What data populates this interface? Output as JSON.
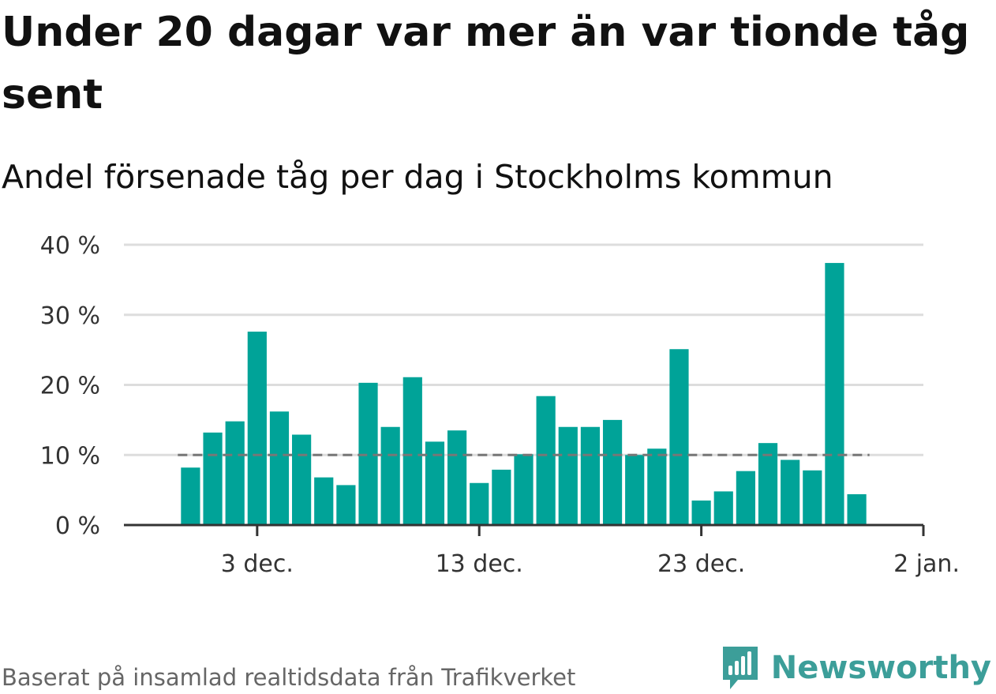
{
  "header": {
    "title": "Under 20 dagar var mer än var tionde tåg sent",
    "subtitle": "Andel försenade tåg per dag i Stockholms kommun"
  },
  "footer": {
    "source": "Baserat på insamlad realtidsdata från Trafikverket",
    "brand": "Newsworthy"
  },
  "colors": {
    "bar": "#00a398",
    "reference_line": "#777777",
    "grid": "#dddddd",
    "axis": "#333333",
    "brand": "#3c9e99"
  },
  "icons": {
    "logo": "newsworthy-logo-icon"
  },
  "chart_data": {
    "type": "bar",
    "title": "",
    "xlabel": "",
    "ylabel": "",
    "x": [
      "2023-11-30",
      "2023-12-01",
      "2023-12-02",
      "2023-12-03",
      "2023-12-04",
      "2023-12-05",
      "2023-12-06",
      "2023-12-07",
      "2023-12-08",
      "2023-12-09",
      "2023-12-10",
      "2023-12-11",
      "2023-12-12",
      "2023-12-13",
      "2023-12-14",
      "2023-12-15",
      "2023-12-16",
      "2023-12-17",
      "2023-12-18",
      "2023-12-19",
      "2023-12-20",
      "2023-12-21",
      "2023-12-22",
      "2023-12-23",
      "2023-12-24",
      "2023-12-25",
      "2023-12-26",
      "2023-12-27",
      "2023-12-28",
      "2023-12-29",
      "2023-12-30",
      "2023-12-31"
    ],
    "values": [
      8.2,
      13.2,
      14.8,
      27.6,
      16.2,
      12.9,
      6.8,
      5.7,
      20.3,
      14.0,
      21.1,
      11.9,
      13.5,
      6.0,
      7.9,
      10.1,
      18.4,
      14.0,
      14.0,
      15.0,
      10.0,
      10.9,
      25.1,
      3.5,
      4.8,
      7.7,
      11.7,
      9.3,
      7.8,
      37.4,
      4.4,
      null
    ],
    "reference_line": {
      "value": 10,
      "style": "dashed"
    },
    "ylim": [
      0,
      40
    ],
    "y_ticks": [
      0,
      10,
      20,
      30,
      40
    ],
    "y_tick_labels": [
      "0 %",
      "10 %",
      "20 %",
      "30 %",
      "40 %"
    ],
    "x_ticks": [
      "2023-12-03",
      "2023-12-13",
      "2023-12-23",
      "2024-01-02"
    ],
    "x_tick_labels": [
      "3 dec.",
      "13 dec.",
      "23 dec.",
      "2 jan."
    ],
    "xlim": [
      "2023-11-27",
      "2024-01-02"
    ],
    "grid": true,
    "legend": "none"
  }
}
